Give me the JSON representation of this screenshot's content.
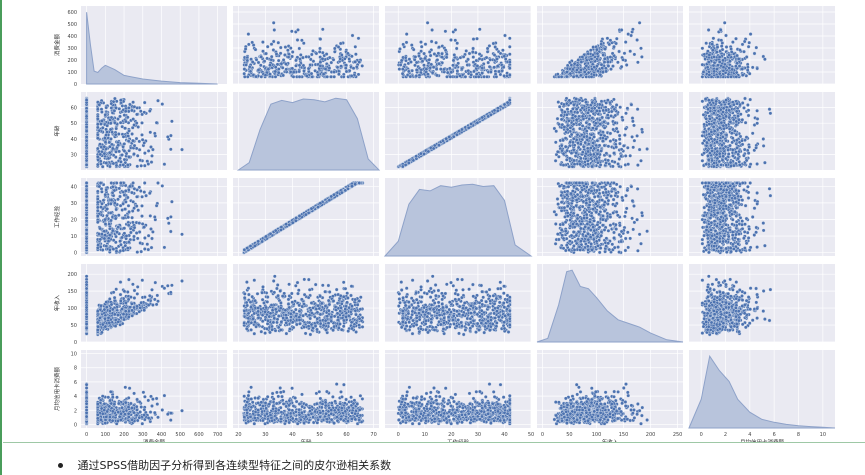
{
  "colors": {
    "plot_background": "#eaeaf2",
    "grid": "#ffffff",
    "marker": "#4c72b0",
    "marker_edge": "#ffffff",
    "density_fill": "#b8c4dc",
    "density_line": "#8ea2c9",
    "left_border": "#4a9d5b",
    "bottom_rule": "#9ec8a6"
  },
  "chart_data": {
    "type": "scatter",
    "variables": [
      "消费金额",
      "年龄",
      "工作经验",
      "年收入",
      "月均信用卡消费额"
    ],
    "xlabels": [
      "消费金额",
      "年龄",
      "工作经验",
      "年收入",
      "月均信用卡消费额"
    ],
    "ylabels": [
      "消费金额",
      "年龄",
      "工作经验",
      "年收入",
      "月均信用卡消费额"
    ],
    "diagonal": "kde",
    "grid": true,
    "axes": [
      {
        "name": "消费金额",
        "range": [
          -30,
          750
        ],
        "ticks": [
          0,
          100,
          200,
          300,
          400,
          500,
          600,
          700
        ],
        "yrange": [
          0,
          650
        ],
        "yticks": [
          0,
          100,
          200,
          300,
          400,
          500,
          600
        ]
      },
      {
        "name": "年龄",
        "range": [
          18,
          72
        ],
        "ticks": [
          20,
          30,
          40,
          50,
          60,
          70
        ],
        "yrange": [
          20,
          70
        ],
        "yticks": [
          30,
          40,
          50,
          60
        ]
      },
      {
        "name": "工作经验",
        "range": [
          -5,
          50
        ],
        "ticks": [
          0,
          10,
          20,
          30,
          40,
          50
        ],
        "yrange": [
          -2,
          45
        ],
        "yticks": [
          0,
          10,
          20,
          30,
          40
        ]
      },
      {
        "name": "年收入",
        "range": [
          -10,
          260
        ],
        "ticks": [
          0,
          50,
          100,
          150,
          200,
          250
        ],
        "yrange": [
          0,
          230
        ],
        "yticks": [
          0,
          50,
          100,
          150,
          200
        ]
      },
      {
        "name": "月均信用卡消费额",
        "range": [
          -1,
          11
        ],
        "ticks": [
          0,
          2,
          4,
          6,
          8,
          10
        ],
        "yrange": [
          -0.5,
          10.5
        ],
        "yticks": [
          0,
          2,
          4,
          6,
          8,
          10
        ]
      }
    ],
    "kde": [
      {
        "x": [
          0,
          20,
          40,
          60,
          80,
          100,
          150,
          200,
          300,
          400,
          500,
          600,
          700
        ],
        "density": [
          1.0,
          0.55,
          0.18,
          0.16,
          0.22,
          0.26,
          0.2,
          0.12,
          0.07,
          0.04,
          0.02,
          0.01,
          0.0
        ]
      },
      {
        "x": [
          20,
          24,
          28,
          32,
          36,
          40,
          44,
          48,
          52,
          56,
          60,
          64,
          68,
          72
        ],
        "density": [
          0.0,
          0.1,
          0.55,
          0.9,
          0.95,
          0.92,
          0.97,
          0.96,
          0.93,
          0.98,
          0.96,
          0.7,
          0.15,
          0.0
        ]
      },
      {
        "x": [
          -5,
          0,
          4,
          8,
          12,
          16,
          20,
          24,
          28,
          32,
          36,
          40,
          44,
          50
        ],
        "density": [
          0.0,
          0.2,
          0.7,
          0.9,
          0.88,
          0.95,
          0.93,
          0.96,
          0.97,
          0.94,
          0.95,
          0.75,
          0.15,
          0.0
        ]
      },
      {
        "x": [
          -10,
          10,
          30,
          45,
          55,
          70,
          85,
          100,
          120,
          140,
          160,
          180,
          200,
          230,
          260
        ],
        "density": [
          0.0,
          0.05,
          0.5,
          0.95,
          0.97,
          0.75,
          0.72,
          0.6,
          0.42,
          0.3,
          0.25,
          0.2,
          0.12,
          0.03,
          0.0
        ]
      },
      {
        "x": [
          -1,
          0,
          0.7,
          1.5,
          2.3,
          3,
          4,
          5,
          6,
          7,
          8,
          9,
          10,
          11
        ],
        "density": [
          0.0,
          0.4,
          1.0,
          0.8,
          0.65,
          0.4,
          0.22,
          0.12,
          0.08,
          0.05,
          0.03,
          0.02,
          0.01,
          0.0
        ]
      }
    ],
    "correlations": [
      [
        1,
        0.0,
        0.0,
        0.75,
        0.3
      ],
      [
        0.0,
        1,
        0.99,
        0.0,
        0.0
      ],
      [
        0.0,
        0.99,
        1,
        0.0,
        0.0
      ],
      [
        0.75,
        0.0,
        0.0,
        1,
        0.6
      ],
      [
        0.3,
        0.0,
        0.0,
        0.6,
        1
      ]
    ]
  },
  "bullet": {
    "text": "通过SPSS借助因子分析得到各连续型特征之间的皮尔逊相关系数"
  }
}
